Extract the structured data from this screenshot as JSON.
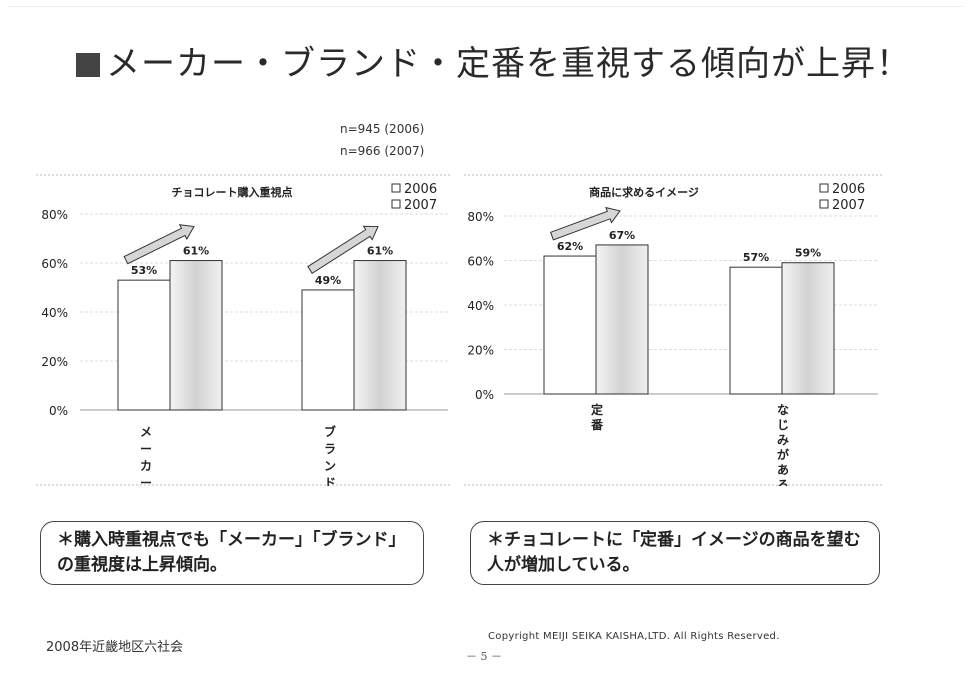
{
  "title": "メーカー・ブランド・定番を重視する傾向が上昇！",
  "sample_sizes": [
    "n=945 (2006)",
    "n=966 (2007)"
  ],
  "chart_data": [
    {
      "type": "bar",
      "title": "チョコレート購入重視点",
      "categories": [
        "メーカー",
        "ブランド"
      ],
      "series": [
        {
          "name": "2006",
          "values": [
            53,
            49
          ],
          "labels": [
            "53%",
            "49%"
          ],
          "color": "#ffffff"
        },
        {
          "name": "2007",
          "values": [
            61,
            61
          ],
          "labels": [
            "61%",
            "61%"
          ],
          "color": "#e6e6e6"
        }
      ],
      "ylim": [
        0,
        80
      ],
      "yticks": [
        "0%",
        "20%",
        "40%",
        "60%",
        "80%"
      ],
      "legend": "top-right",
      "arrows": "2006→2007 upward"
    },
    {
      "type": "bar",
      "title": "商品に求めるイメージ",
      "categories": [
        "定番",
        "なじみがある"
      ],
      "series": [
        {
          "name": "2006",
          "values": [
            62,
            57
          ],
          "labels": [
            "62%",
            "57%"
          ],
          "color": "#ffffff"
        },
        {
          "name": "2007",
          "values": [
            67,
            59
          ],
          "labels": [
            "67%",
            "59%"
          ],
          "color": "#e6e6e6"
        }
      ],
      "ylim": [
        0,
        80
      ],
      "yticks": [
        "0%",
        "20%",
        "40%",
        "60%",
        "80%"
      ],
      "legend": "top-right",
      "arrows": "2006→2007 upward on 定番"
    }
  ],
  "notes": [
    "＊購入時重視点でも「メーカー」「ブランド」の重視度は上昇傾向。",
    "＊チョコレートに「定番」イメージの商品を望む人が増加している。"
  ],
  "footer": {
    "organization": "2008年近畿地区六社会",
    "copyright": "Copyright  MEIJI  SEIKA  KAISHA,LTD.   All  Rights Reserved.",
    "page": "－ 5 －"
  },
  "colors": {
    "bar_2006": "#ffffff",
    "bar_2007": "#e6e6e6",
    "ink": "#222222"
  }
}
